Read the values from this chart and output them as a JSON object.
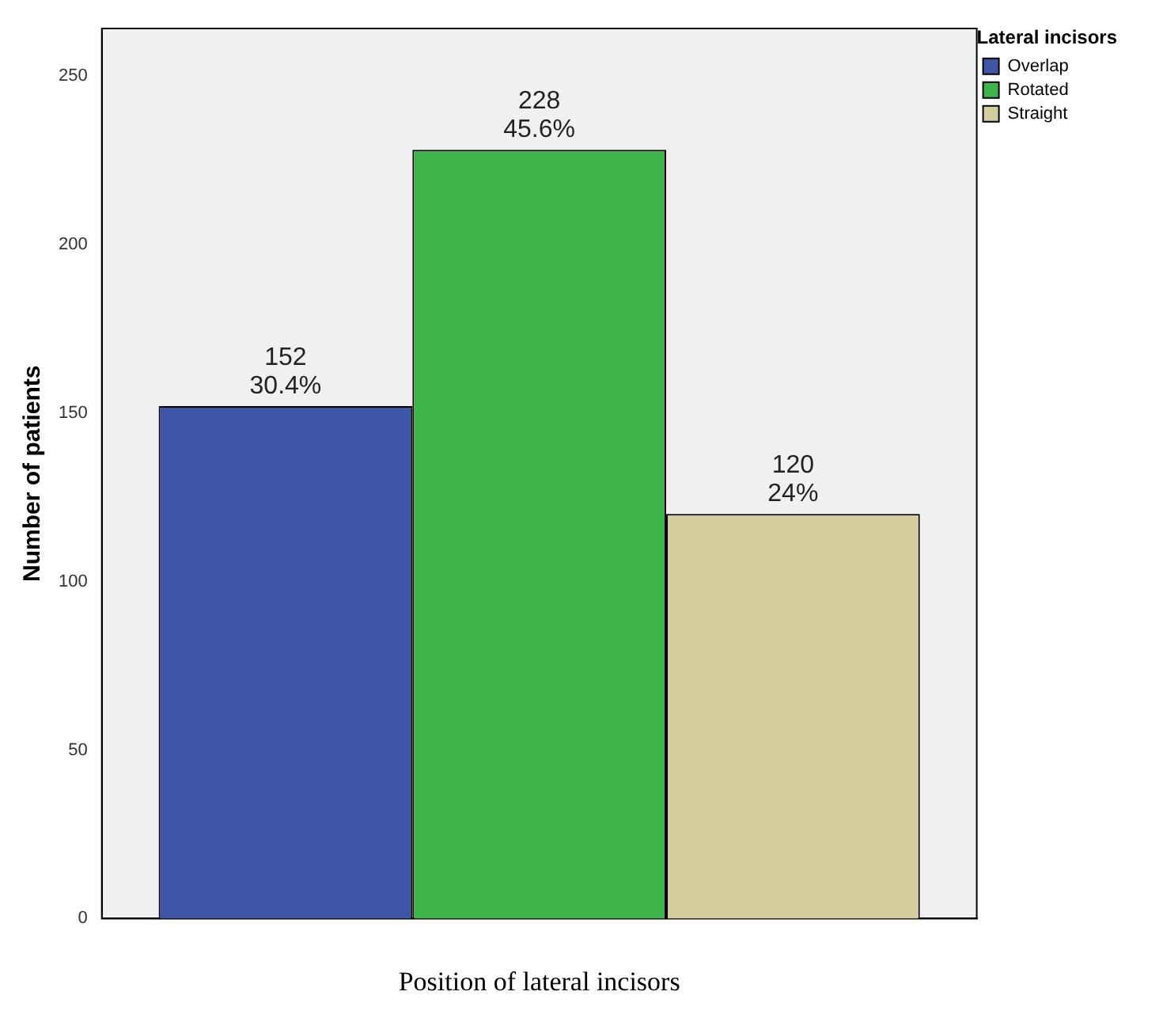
{
  "chart_data": {
    "type": "bar",
    "xlabel": "Position of lateral incisors",
    "ylabel": "Number of patients",
    "legend_title": "Lateral incisors",
    "categories": [
      null
    ],
    "series": [
      {
        "name": "Overlap",
        "color": "#3f56a6",
        "values": [
          152
        ],
        "value_labels": [
          "152\n30.4%"
        ]
      },
      {
        "name": "Rotated",
        "color": "#3db54a",
        "values": [
          228
        ],
        "value_labels": [
          "228\n45.6%"
        ]
      },
      {
        "name": "Straight",
        "color": "#d3ce9c",
        "values": [
          120
        ],
        "value_labels": [
          "120\n24%"
        ]
      }
    ],
    "ylim": [
      0,
      264
    ],
    "yticks": [
      0,
      50,
      100,
      150,
      200,
      250
    ],
    "grid": false,
    "legend": "top right"
  }
}
